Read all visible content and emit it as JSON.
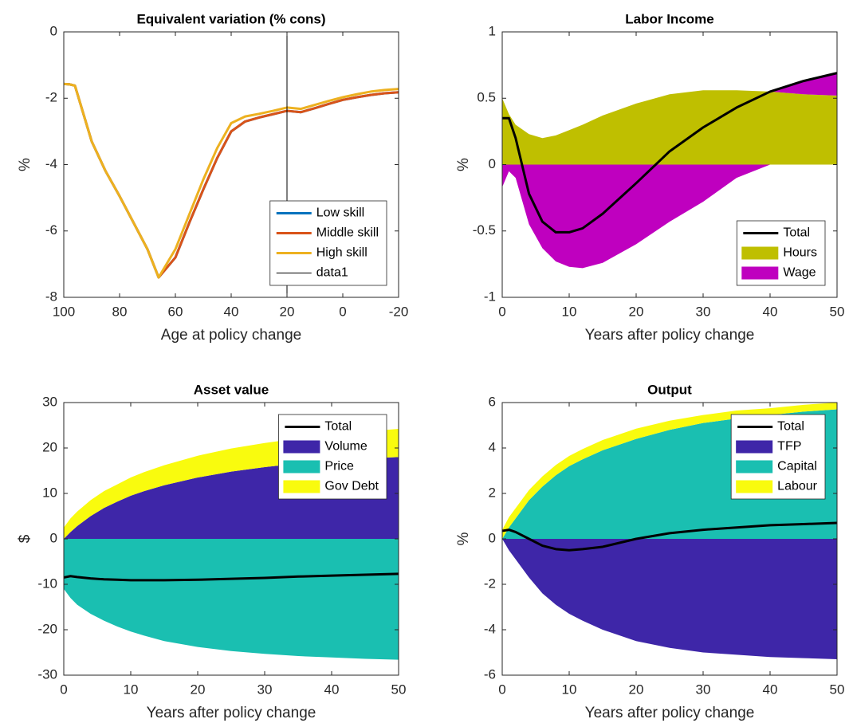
{
  "chart_data": [
    {
      "type": "line",
      "title": "Equivalent variation (% cons)",
      "xlabel": "Age at policy change",
      "ylabel": "%",
      "x": [
        100,
        98,
        96,
        95,
        90,
        85,
        80,
        75,
        70,
        66,
        60,
        55,
        50,
        45,
        40,
        35,
        30,
        25,
        20,
        15,
        10,
        5,
        0,
        -5,
        -10,
        -15,
        -20
      ],
      "xlim": [
        100,
        -20
      ],
      "xticks": [
        100,
        80,
        60,
        40,
        20,
        0,
        -20
      ],
      "ylim": [
        -8,
        0
      ],
      "yticks": [
        -8,
        -6,
        -4,
        -2,
        0
      ],
      "legend_location": "southeast",
      "series": [
        {
          "name": "Low skill",
          "color": "#0072BD",
          "linewidth": 3,
          "values": [
            -1.57,
            -1.58,
            -1.62,
            -1.9,
            -3.3,
            -4.2,
            -4.95,
            -5.75,
            -6.55,
            -7.4,
            -6.8,
            -5.75,
            -4.75,
            -3.8,
            -3.0,
            -2.7,
            -2.58,
            -2.48,
            -2.38,
            -2.42,
            -2.3,
            -2.17,
            -2.05,
            -1.97,
            -1.9,
            -1.85,
            -1.82
          ]
        },
        {
          "name": "Middle skill",
          "color": "#D95319",
          "linewidth": 3,
          "values": [
            -1.57,
            -1.58,
            -1.62,
            -1.9,
            -3.3,
            -4.2,
            -4.95,
            -5.75,
            -6.55,
            -7.4,
            -6.8,
            -5.75,
            -4.75,
            -3.8,
            -3.0,
            -2.7,
            -2.58,
            -2.48,
            -2.38,
            -2.42,
            -2.3,
            -2.17,
            -2.05,
            -1.97,
            -1.9,
            -1.85,
            -1.82
          ]
        },
        {
          "name": "High skill",
          "color": "#EDB120",
          "linewidth": 3,
          "values": [
            -1.57,
            -1.58,
            -1.62,
            -1.9,
            -3.3,
            -4.2,
            -4.95,
            -5.75,
            -6.55,
            -7.4,
            -6.55,
            -5.5,
            -4.45,
            -3.5,
            -2.75,
            -2.55,
            -2.47,
            -2.38,
            -2.28,
            -2.32,
            -2.2,
            -2.08,
            -1.97,
            -1.88,
            -1.8,
            -1.75,
            -1.72
          ]
        },
        {
          "name": "data1",
          "color": "#000000",
          "linewidth": 1,
          "x": [
            20,
            20
          ],
          "values": [
            -8,
            0
          ]
        }
      ]
    },
    {
      "type": "area",
      "title": "Labor Income",
      "xlabel": "Years after policy change",
      "ylabel": "%",
      "x": [
        0,
        1,
        2,
        4,
        6,
        8,
        10,
        12,
        15,
        20,
        25,
        30,
        35,
        40,
        45,
        50
      ],
      "xlim": [
        0,
        50
      ],
      "xticks": [
        0,
        10,
        20,
        30,
        40,
        50
      ],
      "ylim": [
        -1,
        1
      ],
      "yticks": [
        -1,
        -0.5,
        0,
        0.5,
        1
      ],
      "legend_location": "southeast",
      "series": [
        {
          "name": "Total",
          "type": "line",
          "color": "#000000",
          "linewidth": 3,
          "values": [
            0.35,
            0.35,
            0.2,
            -0.22,
            -0.43,
            -0.51,
            -0.51,
            -0.48,
            -0.37,
            -0.14,
            0.1,
            0.28,
            0.43,
            0.55,
            0.63,
            0.69
          ]
        },
        {
          "name": "Hours",
          "type": "area",
          "color": "#BFBF00",
          "values": [
            0.5,
            0.38,
            0.3,
            0.23,
            0.2,
            0.22,
            0.26,
            0.3,
            0.37,
            0.46,
            0.53,
            0.56,
            0.56,
            0.55,
            0.53,
            0.52
          ]
        },
        {
          "name": "Wage",
          "type": "area",
          "color": "#BF00BF",
          "values": [
            -0.17,
            -0.05,
            -0.1,
            -0.45,
            -0.63,
            -0.73,
            -0.77,
            -0.78,
            -0.74,
            -0.6,
            -0.43,
            -0.28,
            -0.1,
            0,
            0.1,
            0.17
          ]
        }
      ]
    },
    {
      "type": "area",
      "title": "Asset value",
      "xlabel": "Years after policy change",
      "ylabel": "$",
      "x": [
        0,
        1,
        2,
        4,
        6,
        8,
        10,
        12,
        15,
        20,
        25,
        30,
        35,
        40,
        45,
        50
      ],
      "xlim": [
        0,
        50
      ],
      "xticks": [
        0,
        10,
        20,
        30,
        40,
        50
      ],
      "ylim": [
        -30,
        30
      ],
      "yticks": [
        -30,
        -20,
        -10,
        0,
        10,
        20,
        30
      ],
      "legend_location": "northeast",
      "series": [
        {
          "name": "Total",
          "type": "line",
          "color": "#000000",
          "linewidth": 3,
          "values": [
            -8.5,
            -8.2,
            -8.4,
            -8.7,
            -8.9,
            -9,
            -9.1,
            -9.1,
            -9.1,
            -9,
            -8.8,
            -8.6,
            -8.3,
            -8.1,
            -7.9,
            -7.7
          ]
        },
        {
          "name": "Volume",
          "type": "area",
          "color": "#3E26A8",
          "values": [
            0,
            1.5,
            2.8,
            5,
            6.8,
            8.2,
            9.5,
            10.5,
            11.8,
            13.5,
            14.8,
            15.8,
            16.6,
            17.2,
            17.7,
            18
          ]
        },
        {
          "name": "Price",
          "type": "area",
          "color": "#1ABFB1",
          "values": [
            -11,
            -13,
            -14.5,
            -16.5,
            -18,
            -19.3,
            -20.4,
            -21.3,
            -22.5,
            -23.8,
            -24.7,
            -25.3,
            -25.8,
            -26.1,
            -26.4,
            -26.6
          ]
        },
        {
          "name": "Gov Debt",
          "type": "area",
          "color": "#F9FB0E",
          "values": [
            2.5,
            3,
            3.2,
            3.5,
            3.7,
            3.8,
            4,
            4.2,
            4.4,
            4.8,
            5.1,
            5.3,
            5.5,
            5.7,
            5.9,
            6.2
          ]
        }
      ]
    },
    {
      "type": "area",
      "title": "Output",
      "xlabel": "Years after policy change",
      "ylabel": "%",
      "x": [
        0,
        1,
        2,
        4,
        6,
        8,
        10,
        12,
        15,
        20,
        25,
        30,
        35,
        40,
        45,
        50
      ],
      "xlim": [
        0,
        50
      ],
      "xticks": [
        0,
        10,
        20,
        30,
        40,
        50
      ],
      "ylim": [
        -6,
        6
      ],
      "yticks": [
        -6,
        -4,
        -2,
        0,
        2,
        4,
        6
      ],
      "legend_location": "northeast",
      "series": [
        {
          "name": "Total",
          "type": "line",
          "color": "#000000",
          "linewidth": 3,
          "values": [
            0.35,
            0.4,
            0.3,
            0,
            -0.3,
            -0.45,
            -0.5,
            -0.45,
            -0.35,
            0,
            0.25,
            0.4,
            0.5,
            0.6,
            0.65,
            0.7
          ]
        },
        {
          "name": "TFP",
          "type": "area",
          "color": "#3E26A8",
          "values": [
            0,
            -0.5,
            -0.9,
            -1.7,
            -2.4,
            -2.9,
            -3.3,
            -3.6,
            -4,
            -4.5,
            -4.8,
            -5,
            -5.1,
            -5.2,
            -5.25,
            -5.3
          ]
        },
        {
          "name": "Capital",
          "type": "area",
          "color": "#1ABFB1",
          "values": [
            0,
            0.5,
            0.9,
            1.7,
            2.3,
            2.8,
            3.2,
            3.5,
            3.9,
            4.4,
            4.8,
            5.1,
            5.3,
            5.45,
            5.6,
            5.7
          ]
        },
        {
          "name": "Labour",
          "type": "area",
          "color": "#F9FB0E",
          "values": [
            0.4,
            0.45,
            0.45,
            0.45,
            0.45,
            0.45,
            0.45,
            0.45,
            0.45,
            0.45,
            0.4,
            0.35,
            0.35,
            0.3,
            0.3,
            0.3
          ]
        }
      ]
    }
  ]
}
